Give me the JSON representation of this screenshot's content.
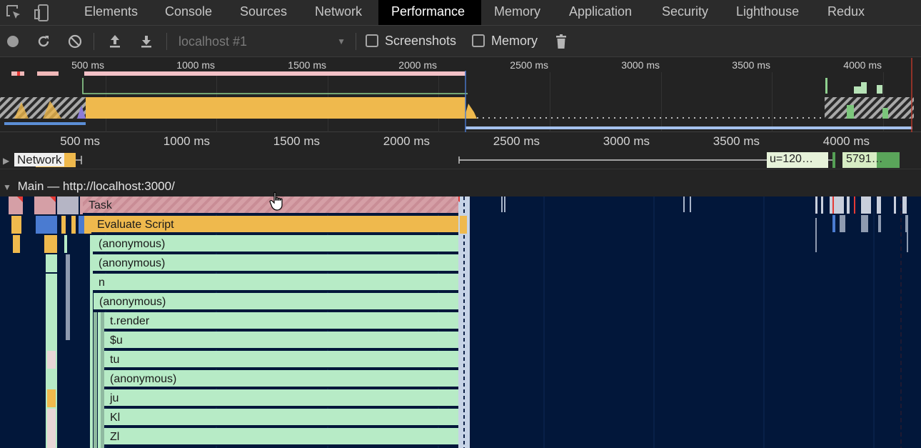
{
  "devtools": {
    "tabs": [
      {
        "label": "Elements"
      },
      {
        "label": "Console"
      },
      {
        "label": "Sources"
      },
      {
        "label": "Network"
      },
      {
        "label": "Performance"
      },
      {
        "label": "Memory"
      },
      {
        "label": "Application"
      },
      {
        "label": "Security"
      },
      {
        "label": "Lighthouse"
      },
      {
        "label": "Redux"
      }
    ],
    "active_tab": "Performance"
  },
  "toolbar": {
    "target": "localhost #1",
    "screenshots_label": "Screenshots",
    "screenshots_checked": false,
    "memory_label": "Memory",
    "memory_checked": false
  },
  "overview": {
    "ticks": [
      "500 ms",
      "1000 ms",
      "1500 ms",
      "2000 ms",
      "2500 ms",
      "3000 ms",
      "3500 ms",
      "4000 ms"
    ]
  },
  "timeline": {
    "ticks": [
      "500 ms",
      "1000 ms",
      "1500 ms",
      "2000 ms",
      "2500 ms",
      "3000 ms",
      "3500 ms",
      "4000 ms"
    ],
    "network_label": "Network",
    "network_item_1": "u=120…",
    "network_item_2": "5791…",
    "main_label": "Main — http://localhost:3000/"
  },
  "flame": {
    "entries": [
      {
        "label": "Task",
        "kind": "task"
      },
      {
        "label": "Evaluate Script",
        "kind": "eval"
      },
      {
        "label": "(anonymous)",
        "kind": "fn"
      },
      {
        "label": "(anonymous)",
        "kind": "fn"
      },
      {
        "label": "n",
        "kind": "fn"
      },
      {
        "label": "(anonymous)",
        "kind": "fn"
      },
      {
        "label": "t.render",
        "kind": "fn"
      },
      {
        "label": "$u",
        "kind": "fn"
      },
      {
        "label": "tu",
        "kind": "fn"
      },
      {
        "label": "(anonymous)",
        "kind": "fn"
      },
      {
        "label": "ju",
        "kind": "fn"
      },
      {
        "label": "Kl",
        "kind": "fn"
      },
      {
        "label": "Zl",
        "kind": "fn"
      }
    ]
  },
  "colors": {
    "task": "#d59fa6",
    "scripting": "#efb94d",
    "function": "#b7ebc6",
    "flame_bg": "#02173a",
    "active_tab_bg": "#000000"
  }
}
